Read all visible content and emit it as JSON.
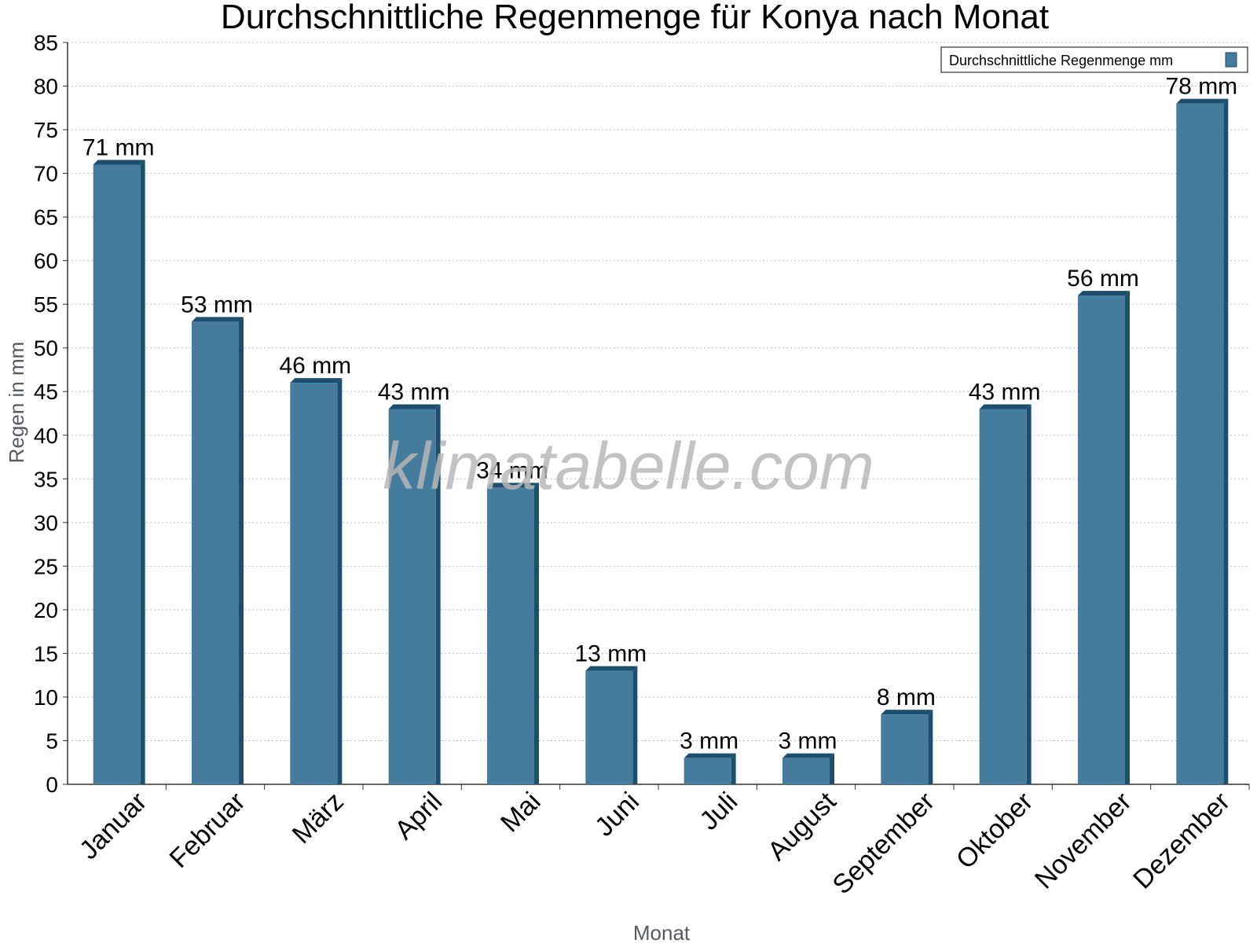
{
  "chart_data": {
    "type": "bar",
    "title": "Durchschnittliche Regenmenge für Konya nach Monat",
    "xlabel": "Monat",
    "ylabel": "Regen in mm",
    "categories": [
      "Januar",
      "Februar",
      "März",
      "April",
      "Mai",
      "Juni",
      "Juli",
      "August",
      "September",
      "Oktober",
      "November",
      "Dezember"
    ],
    "series": [
      {
        "name": "Durchschnittliche Regenmenge mm",
        "values": [
          71,
          53,
          46,
          43,
          34,
          13,
          3,
          3,
          8,
          43,
          56,
          78
        ],
        "labels": [
          "71 mm",
          "53 mm",
          "46 mm",
          "43 mm",
          "34 mm",
          "13 mm",
          "3 mm",
          "3 mm",
          "8 mm",
          "43 mm",
          "56 mm",
          "78 mm"
        ]
      }
    ],
    "ylim": [
      0,
      85
    ],
    "yticks": [
      0,
      5,
      10,
      15,
      20,
      25,
      30,
      35,
      40,
      45,
      50,
      55,
      60,
      65,
      70,
      75,
      80,
      85
    ],
    "grid": true,
    "legend_position": "top-right",
    "colors": {
      "bar": "#457b9d",
      "bar_side": "#1d4e6e"
    }
  },
  "watermark": "klimatabelle.com"
}
